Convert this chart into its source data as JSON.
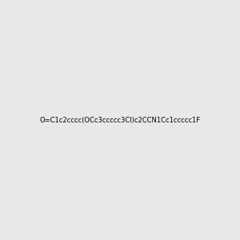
{
  "smiles": "O=C1c2cccc(OCc3ccccc3Cl)c2CCN1Cc1ccccc1F",
  "image_size": 300,
  "background_color": "#e8e8e8",
  "atom_colors": {
    "O_carbonyl": "#ff0000",
    "O_ether": "#ff0000",
    "N": "#0000ff",
    "Cl": "#00aa00",
    "F": "#ff00ff"
  }
}
